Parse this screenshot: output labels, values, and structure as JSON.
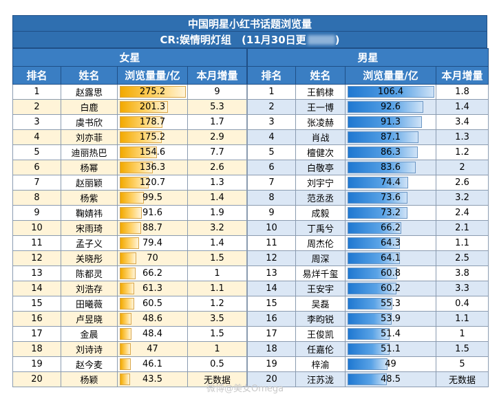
{
  "title": "中国明星小红书话题浏览量",
  "subtitle": "CR:娱情明灯组　(11月30日更",
  "subtitle_end": ")",
  "female": {
    "group_label": "女星",
    "headers": [
      "排名",
      "姓名",
      "浏览量量/亿",
      "本月增量"
    ],
    "max": 275.2,
    "rows": [
      {
        "rank": "1",
        "name": "赵露思",
        "views": 275.2,
        "views_label": "275.2",
        "increase": "9"
      },
      {
        "rank": "2",
        "name": "白鹿",
        "views": 201.3,
        "views_label": "201.3",
        "increase": "5.3"
      },
      {
        "rank": "3",
        "name": "虞书欣",
        "views": 178.7,
        "views_label": "178.7",
        "increase": "1.7"
      },
      {
        "rank": "4",
        "name": "刘亦菲",
        "views": 175.2,
        "views_label": "175.2",
        "increase": "2.9"
      },
      {
        "rank": "5",
        "name": "迪丽热巴",
        "views": 154.6,
        "views_label": "154.6",
        "increase": "7.7"
      },
      {
        "rank": "6",
        "name": "杨幂",
        "views": 136.3,
        "views_label": "136.3",
        "increase": "2.6"
      },
      {
        "rank": "7",
        "name": "赵丽颖",
        "views": 120.7,
        "views_label": "120.7",
        "increase": "1.3"
      },
      {
        "rank": "8",
        "name": "杨紫",
        "views": 99.5,
        "views_label": "99.5",
        "increase": "1.4"
      },
      {
        "rank": "9",
        "name": "鞠婧祎",
        "views": 91.6,
        "views_label": "91.6",
        "increase": "1.9"
      },
      {
        "rank": "10",
        "name": "宋雨琦",
        "views": 88.7,
        "views_label": "88.7",
        "increase": "3.2"
      },
      {
        "rank": "11",
        "name": "孟子义",
        "views": 79.4,
        "views_label": "79.4",
        "increase": "1.4"
      },
      {
        "rank": "12",
        "name": "关晓彤",
        "views": 70,
        "views_label": "70",
        "increase": "1.5"
      },
      {
        "rank": "13",
        "name": "陈都灵",
        "views": 66.2,
        "views_label": "66.2",
        "increase": "1"
      },
      {
        "rank": "14",
        "name": "刘浩存",
        "views": 61.3,
        "views_label": "61.3",
        "increase": "1.1"
      },
      {
        "rank": "15",
        "name": "田曦薇",
        "views": 60.5,
        "views_label": "60.5",
        "increase": "1.2"
      },
      {
        "rank": "16",
        "name": "卢昱晓",
        "views": 48.6,
        "views_label": "48.6",
        "increase": "3.5"
      },
      {
        "rank": "17",
        "name": "金晨",
        "views": 48.4,
        "views_label": "48.4",
        "increase": "1.5"
      },
      {
        "rank": "18",
        "name": "刘诗诗",
        "views": 47,
        "views_label": "47",
        "increase": "1"
      },
      {
        "rank": "19",
        "name": "赵今麦",
        "views": 46.1,
        "views_label": "46.1",
        "increase": "0.5"
      },
      {
        "rank": "20",
        "name": "杨颖",
        "views": 43.5,
        "views_label": "43.5",
        "increase": "无数据"
      }
    ]
  },
  "male": {
    "group_label": "男星",
    "headers": [
      "排名",
      "姓名",
      "浏览量量/亿",
      "本月增量"
    ],
    "max": 106.4,
    "rows": [
      {
        "rank": "1",
        "name": "王鹤棣",
        "views": 106.4,
        "views_label": "106.4",
        "increase": "1.8"
      },
      {
        "rank": "2",
        "name": "王一博",
        "views": 92.6,
        "views_label": "92.6",
        "increase": "1.4"
      },
      {
        "rank": "3",
        "name": "张凌赫",
        "views": 91.3,
        "views_label": "91.3",
        "increase": "3.4"
      },
      {
        "rank": "4",
        "name": "肖战",
        "views": 87.1,
        "views_label": "87.1",
        "increase": "1.3"
      },
      {
        "rank": "5",
        "name": "檀健次",
        "views": 86.3,
        "views_label": "86.3",
        "increase": "1.2"
      },
      {
        "rank": "6",
        "name": "白敬亭",
        "views": 83.6,
        "views_label": "83.6",
        "increase": "2"
      },
      {
        "rank": "7",
        "name": "刘宇宁",
        "views": 74.4,
        "views_label": "74.4",
        "increase": "2.6"
      },
      {
        "rank": "8",
        "name": "范丞丞",
        "views": 73.6,
        "views_label": "73.6",
        "increase": "3.2"
      },
      {
        "rank": "9",
        "name": "成毅",
        "views": 73.2,
        "views_label": "73.2",
        "increase": "2.4"
      },
      {
        "rank": "10",
        "name": "丁禹兮",
        "views": 66.2,
        "views_label": "66.2",
        "increase": "2.1"
      },
      {
        "rank": "11",
        "name": "周杰伦",
        "views": 64.3,
        "views_label": "64.3",
        "increase": "1.1"
      },
      {
        "rank": "12",
        "name": "周深",
        "views": 64.1,
        "views_label": "64.1",
        "increase": "2.5"
      },
      {
        "rank": "13",
        "name": "易烊千玺",
        "views": 60.8,
        "views_label": "60.8",
        "increase": "3.8"
      },
      {
        "rank": "14",
        "name": "王安宇",
        "views": 60.2,
        "views_label": "60.2",
        "increase": "3.3"
      },
      {
        "rank": "15",
        "name": "吴磊",
        "views": 55.3,
        "views_label": "55.3",
        "increase": "0.4"
      },
      {
        "rank": "16",
        "name": "李昀锐",
        "views": 53.9,
        "views_label": "53.9",
        "increase": "1.1"
      },
      {
        "rank": "17",
        "name": "王俊凯",
        "views": 51.4,
        "views_label": "51.4",
        "increase": "1"
      },
      {
        "rank": "18",
        "name": "任嘉伦",
        "views": 51.1,
        "views_label": "51.1",
        "increase": "1.5"
      },
      {
        "rank": "19",
        "name": "梓渝",
        "views": 49,
        "views_label": "49",
        "increase": "5"
      },
      {
        "rank": "20",
        "name": "汪苏泷",
        "views": 48.5,
        "views_label": "48.5",
        "increase": "无数据"
      }
    ]
  },
  "watermark": "微博@美女Omega"
}
